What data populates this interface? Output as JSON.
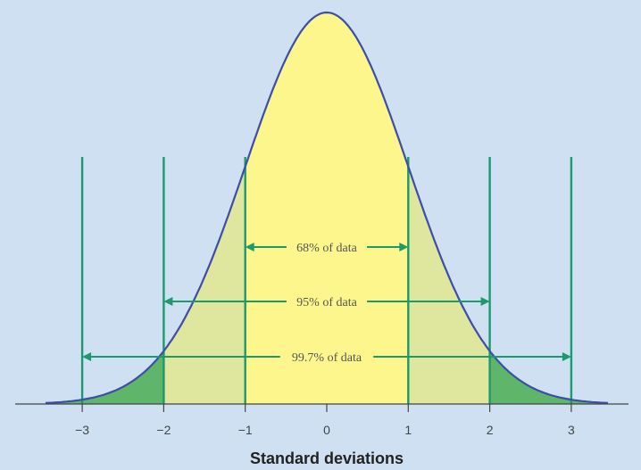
{
  "chart_data": {
    "type": "area",
    "title": "",
    "xlabel": "Standard deviations",
    "ylabel": "",
    "xlim": [
      -3.45,
      3.45
    ],
    "x_ticks": [
      -3,
      -2,
      -1,
      0,
      1,
      2,
      3
    ],
    "x_tick_labels": [
      "−3",
      "−2",
      "−1",
      "0",
      "1",
      "2",
      "3"
    ],
    "curve": "standard normal density",
    "grid": false,
    "legend": "none",
    "reference_lines_at": [
      -3,
      -2,
      -1,
      1,
      2,
      3
    ],
    "ranges": [
      {
        "label": "68% of data",
        "from": -1,
        "to": 1
      },
      {
        "label": "95% of data",
        "from": -2,
        "to": 2
      },
      {
        "label": "99.7% of data",
        "from": -3,
        "to": 3
      }
    ],
    "colors": {
      "background": "#cfe0f3",
      "center_fill": "#fdf68d",
      "middle_fill": "#dfe69e",
      "tail_fill": "#5fb56a",
      "curve": "#3d4ea6",
      "lines": "#1c9a6b",
      "axis": "#444444"
    }
  }
}
